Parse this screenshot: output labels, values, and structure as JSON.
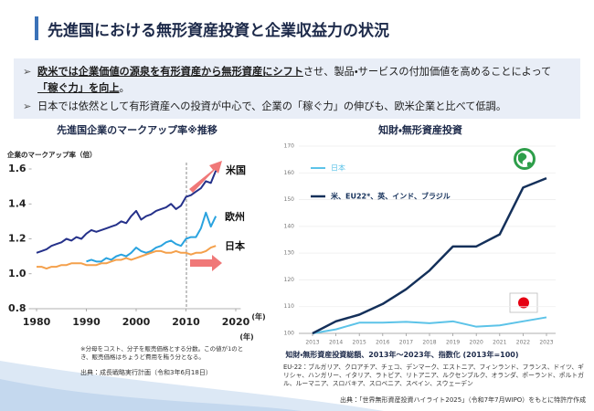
{
  "header": {
    "title": "先進国における無形資産投資と企業収益力の状況"
  },
  "bullets": [
    {
      "marker": "➢",
      "segments": [
        "欧米では企業価値の源泉を有形資産から無形資産にシフト",
        "させ、製品・サービスの付加価値を高めることによって",
        "「稼ぐ力」を向上",
        "。"
      ]
    },
    {
      "marker": "➢",
      "segments": [
        "日本では依然として有形資産への投資が中心で、企業の「稼ぐ力」の伸びも、欧米企業と比べて低調。"
      ]
    }
  ],
  "chart_data": [
    {
      "type": "line",
      "title": "先進国企業のマークアップ率※推移",
      "y_label": "企業のマークアップ率（倍）",
      "x_label": "(年)",
      "x_label_2": "(年)",
      "x": [
        1980,
        1981,
        1982,
        1983,
        1984,
        1985,
        1986,
        1987,
        1988,
        1989,
        1990,
        1991,
        1992,
        1993,
        1994,
        1995,
        1996,
        1997,
        1998,
        1999,
        2000,
        2001,
        2002,
        2003,
        2004,
        2005,
        2006,
        2007,
        2008,
        2009,
        2010,
        2011,
        2012,
        2013,
        2014,
        2015,
        2016
      ],
      "series": [
        {
          "name": "米国",
          "color": "#25318a",
          "values": [
            1.12,
            1.13,
            1.14,
            1.16,
            1.17,
            1.18,
            1.2,
            1.19,
            1.21,
            1.2,
            1.23,
            1.25,
            1.24,
            1.25,
            1.26,
            1.27,
            1.28,
            1.3,
            1.29,
            1.33,
            1.36,
            1.31,
            1.33,
            1.34,
            1.36,
            1.37,
            1.38,
            1.4,
            1.37,
            1.39,
            1.44,
            1.45,
            1.47,
            1.49,
            1.53,
            1.52,
            1.59
          ]
        },
        {
          "name": "欧州",
          "color": "#2aa3df",
          "values": [
            null,
            null,
            null,
            null,
            null,
            null,
            null,
            null,
            null,
            null,
            1.07,
            1.08,
            1.07,
            1.07,
            1.09,
            1.08,
            1.1,
            1.11,
            1.1,
            1.12,
            1.15,
            1.13,
            1.12,
            1.13,
            1.15,
            1.16,
            1.18,
            1.19,
            1.17,
            1.16,
            1.2,
            1.21,
            1.21,
            1.26,
            1.35,
            1.27,
            1.33
          ]
        },
        {
          "name": "日本",
          "color": "#f4a04b",
          "values": [
            1.04,
            1.04,
            1.03,
            1.04,
            1.04,
            1.05,
            1.05,
            1.06,
            1.06,
            1.06,
            1.05,
            1.05,
            1.05,
            1.06,
            1.06,
            1.07,
            1.08,
            1.08,
            1.09,
            1.08,
            1.09,
            1.1,
            1.11,
            1.12,
            1.13,
            1.13,
            1.12,
            1.12,
            1.13,
            1.12,
            1.12,
            1.11,
            1.12,
            1.12,
            1.13,
            1.15,
            1.16
          ]
        }
      ],
      "xlim": [
        1979,
        2021
      ],
      "xticks": [
        1980,
        1990,
        2000,
        2010,
        2020
      ],
      "ylim": [
        0.8,
        1.6
      ],
      "yticks": [
        0.8,
        {
          "value": 1,
          "label": "1.0"
        },
        1.2,
        1.4,
        1.6
      ],
      "grid": false,
      "note": "※分母をコスト、分子を販売価格とする分数。この値が1のとき、販売価格はちょうど費用を賄う分となる。",
      "source": "出典：成長戦略実行計画（令和3年6月18日）"
    },
    {
      "type": "line",
      "title": "知財・無形資産投資",
      "x": [
        2013,
        2014,
        2015,
        2016,
        2017,
        2018,
        2019,
        2020,
        2021,
        2022,
        2023
      ],
      "series": [
        {
          "name": "日本",
          "color": "#5cc3e8",
          "values": [
            100,
            101.5,
            104,
            104,
            104.3,
            103.8,
            104.5,
            102.5,
            103,
            104.5,
            106
          ]
        },
        {
          "name": "米、EU22*、英、インド、ブラジル",
          "color": "#14305a",
          "values": [
            100,
            104.5,
            107,
            111,
            116.5,
            123.5,
            132.5,
            132.5,
            137,
            154.5,
            158
          ]
        }
      ],
      "xlim": [
        2013,
        2023
      ],
      "xticks": [
        2013,
        2014,
        2015,
        2016,
        2017,
        2018,
        2019,
        2020,
        2021,
        2022,
        2023
      ],
      "ylim": [
        100,
        170
      ],
      "yticks": [
        100,
        110,
        120,
        130,
        140,
        150,
        160,
        170
      ],
      "grid": true,
      "caption": "知財・無形資産投資総額、2013年～2023年、指数化 (2013年=100)",
      "note": "EU-22：ブルガリア、クロアチア、チェコ、デンマーク、エストニア、フィンランド、フランス、ドイツ、ギリシャ、ハンガリー、イタリア、ラトビア、リトアニア、ルクセンブルク、オランダ、ポーランド、ポルトガル、ルーマニア、スロバキア、スロベニア、スペイン、スウェーデン",
      "source": "出典：「世界無形資産投資ハイライト2025」（令和7年7月WIPO）をもとに特許庁作成"
    }
  ]
}
